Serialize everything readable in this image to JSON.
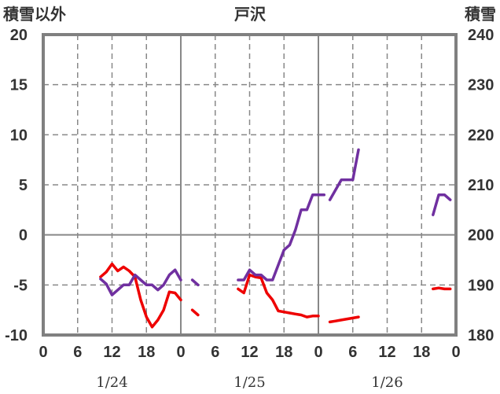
{
  "chart_data": {
    "type": "line",
    "title": "戸沢",
    "left_axis_label": "積雪以外",
    "right_axis_label": "積雪",
    "ylim_left": [
      -10,
      20
    ],
    "ylim_right": [
      180,
      240
    ],
    "yticks_left": [
      "20",
      "15",
      "10",
      "5",
      "0",
      "-5",
      "-10"
    ],
    "yticks_right": [
      "240",
      "230",
      "220",
      "210",
      "200",
      "190",
      "180"
    ],
    "x_hours_range": [
      0,
      72
    ],
    "xticks": [
      "0",
      "6",
      "12",
      "18",
      "0",
      "6",
      "12",
      "18",
      "0",
      "6",
      "12",
      "18",
      "0"
    ],
    "date_labels": [
      "1/24",
      "1/25",
      "1/26"
    ],
    "grid": true,
    "colors": {
      "red": "#ee0000",
      "purple": "#7030a0",
      "grid": "#888888",
      "frame": "#808080"
    },
    "series": [
      {
        "color_key": "red",
        "axis": "left",
        "segments": [
          [
            [
              10,
              -4.2
            ],
            [
              11,
              -3.7
            ],
            [
              12,
              -2.9
            ],
            [
              13,
              -3.6
            ],
            [
              14,
              -3.2
            ],
            [
              15,
              -3.6
            ],
            [
              16,
              -4.2
            ],
            [
              17,
              -6.5
            ],
            [
              18,
              -8.2
            ],
            [
              19,
              -9.2
            ],
            [
              20,
              -8.5
            ],
            [
              21,
              -7.5
            ],
            [
              22,
              -5.7
            ],
            [
              23,
              -5.8
            ],
            [
              24,
              -6.5
            ]
          ],
          [
            [
              26,
              -7.5
            ],
            [
              27,
              -8.0
            ]
          ],
          [
            [
              34,
              -5.4
            ],
            [
              35,
              -5.8
            ],
            [
              36,
              -4.0
            ],
            [
              37,
              -4.2
            ],
            [
              38,
              -4.3
            ],
            [
              39,
              -5.8
            ],
            [
              40,
              -6.5
            ],
            [
              41,
              -7.6
            ],
            [
              42,
              -7.7
            ],
            [
              43,
              -7.8
            ],
            [
              44,
              -7.9
            ],
            [
              45,
              -8.0
            ],
            [
              46,
              -8.2
            ],
            [
              47,
              -8.1
            ],
            [
              48,
              -8.1
            ]
          ],
          [
            [
              50,
              -8.7
            ],
            [
              51,
              -8.6
            ],
            [
              52,
              -8.5
            ],
            [
              53,
              -8.4
            ],
            [
              54,
              -8.3
            ],
            [
              55,
              -8.2
            ]
          ],
          [
            [
              68,
              -5.4
            ],
            [
              69,
              -5.3
            ],
            [
              70,
              -5.4
            ],
            [
              71,
              -5.4
            ]
          ]
        ]
      },
      {
        "color_key": "purple",
        "axis": "right",
        "segments": [
          [
            [
              10,
              191.2
            ],
            [
              11,
              190.2
            ],
            [
              12,
              188.0
            ],
            [
              13,
              189.0
            ],
            [
              14,
              190.0
            ],
            [
              15,
              190.0
            ],
            [
              16,
              192.0
            ],
            [
              17,
              191.0
            ],
            [
              18,
              190.0
            ],
            [
              19,
              190.0
            ],
            [
              20,
              189.0
            ],
            [
              21,
              190.0
            ],
            [
              22,
              192.0
            ],
            [
              23,
              193.0
            ],
            [
              24,
              191.0
            ]
          ],
          [
            [
              26,
              191.0
            ],
            [
              27,
              190.0
            ]
          ],
          [
            [
              34,
              191.0
            ],
            [
              35,
              191.0
            ],
            [
              36,
              193.0
            ],
            [
              37,
              192.0
            ],
            [
              38,
              192.0
            ],
            [
              39,
              191.0
            ],
            [
              40,
              191.0
            ],
            [
              41,
              194.0
            ],
            [
              42,
              197.0
            ],
            [
              43,
              198.0
            ],
            [
              44,
              201.0
            ],
            [
              45,
              205.0
            ],
            [
              46,
              205.0
            ],
            [
              47,
              208.0
            ],
            [
              48,
              208.0
            ],
            [
              49,
              208.0
            ]
          ],
          [
            [
              50,
              207.0
            ],
            [
              51,
              209.0
            ],
            [
              52,
              211.0
            ],
            [
              53,
              211.0
            ],
            [
              54,
              211.0
            ],
            [
              55,
              217.0
            ]
          ],
          [
            [
              68,
              204.0
            ],
            [
              69,
              208.0
            ],
            [
              70,
              208.0
            ],
            [
              71,
              207.0
            ]
          ]
        ]
      }
    ]
  }
}
